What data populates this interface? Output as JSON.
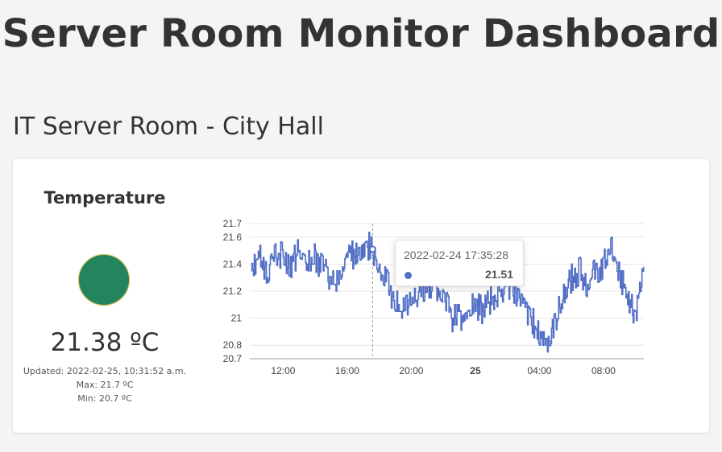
{
  "page": {
    "title": "Server Room Monitor Dashboard"
  },
  "room": {
    "title": "IT Server Room - City Hall"
  },
  "sensor": {
    "title": "Temperature",
    "status_color": "#23845e",
    "value": "21.38 ºC",
    "updated": "Updated: 2022-02-25, 10:31:52 a.m.",
    "max": "Max: 21.7 ºC",
    "min": "Min: 20.7 ºC"
  },
  "tooltip": {
    "time": "2022-02-24 17:35:28",
    "value": "21.51"
  },
  "chart_data": {
    "type": "line",
    "title": "",
    "xlabel": "",
    "ylabel": "",
    "series_color": "#5470c6",
    "grid": true,
    "ylim": [
      20.7,
      21.7
    ],
    "xlim": [
      "2022-02-24 09:55",
      "2022-02-25 10:31"
    ],
    "y_ticks": [
      "21.7",
      "21.6",
      "21.4",
      "21.2",
      "21",
      "20.8",
      "20.7"
    ],
    "x_ticks": [
      "12:00",
      "16:00",
      "20:00",
      "25",
      "04:00",
      "08:00"
    ],
    "x_ticks_bold": [
      false,
      false,
      false,
      true,
      false,
      false
    ],
    "highlight": {
      "x": "2022-02-24 17:35",
      "y": 21.51
    },
    "series": [
      {
        "points": [
          [
            "2022-02-24 10:00",
            21.4
          ],
          [
            "2022-02-24 10:30",
            21.45
          ],
          [
            "2022-02-24 11:00",
            21.35
          ],
          [
            "2022-02-24 11:30",
            21.5
          ],
          [
            "2022-02-24 12:00",
            21.45
          ],
          [
            "2022-02-24 12:30",
            21.4
          ],
          [
            "2022-02-24 13:00",
            21.5
          ],
          [
            "2022-02-24 13:30",
            21.45
          ],
          [
            "2022-02-24 14:00",
            21.45
          ],
          [
            "2022-02-24 14:30",
            21.35
          ],
          [
            "2022-02-24 15:00",
            21.3
          ],
          [
            "2022-02-24 15:30",
            21.3
          ],
          [
            "2022-02-24 16:00",
            21.5
          ],
          [
            "2022-02-24 16:30",
            21.45
          ],
          [
            "2022-02-24 17:00",
            21.5
          ],
          [
            "2022-02-24 17:30",
            21.55
          ],
          [
            "2022-02-24 18:00",
            21.35
          ],
          [
            "2022-02-24 18:30",
            21.25
          ],
          [
            "2022-02-24 19:00",
            21.1
          ],
          [
            "2022-02-24 19:30",
            21.1
          ],
          [
            "2022-02-24 20:00",
            21.15
          ],
          [
            "2022-02-24 20:30",
            21.2
          ],
          [
            "2022-02-24 21:00",
            21.25
          ],
          [
            "2022-02-24 21:30",
            21.25
          ],
          [
            "2022-02-24 22:00",
            21.15
          ],
          [
            "2022-02-24 22:30",
            21.0
          ],
          [
            "2022-02-24 23:00",
            21.0
          ],
          [
            "2022-02-24 23:30",
            21.05
          ],
          [
            "2022-02-25 00:00",
            21.1
          ],
          [
            "2022-02-25 00:30",
            21.05
          ],
          [
            "2022-02-25 01:00",
            21.15
          ],
          [
            "2022-02-25 01:30",
            21.2
          ],
          [
            "2022-02-25 02:00",
            21.25
          ],
          [
            "2022-02-25 02:30",
            21.2
          ],
          [
            "2022-02-25 03:00",
            21.1
          ],
          [
            "2022-02-25 03:30",
            21.0
          ],
          [
            "2022-02-25 04:00",
            20.85
          ],
          [
            "2022-02-25 04:30",
            20.85
          ],
          [
            "2022-02-25 05:00",
            21.0
          ],
          [
            "2022-02-25 05:30",
            21.15
          ],
          [
            "2022-02-25 06:00",
            21.3
          ],
          [
            "2022-02-25 06:30",
            21.35
          ],
          [
            "2022-02-25 07:00",
            21.25
          ],
          [
            "2022-02-25 07:30",
            21.35
          ],
          [
            "2022-02-25 08:00",
            21.4
          ],
          [
            "2022-02-25 08:30",
            21.5
          ],
          [
            "2022-02-25 09:00",
            21.35
          ],
          [
            "2022-02-25 09:30",
            21.1
          ],
          [
            "2022-02-25 10:00",
            21.05
          ],
          [
            "2022-02-25 10:30",
            21.38
          ]
        ]
      }
    ]
  }
}
